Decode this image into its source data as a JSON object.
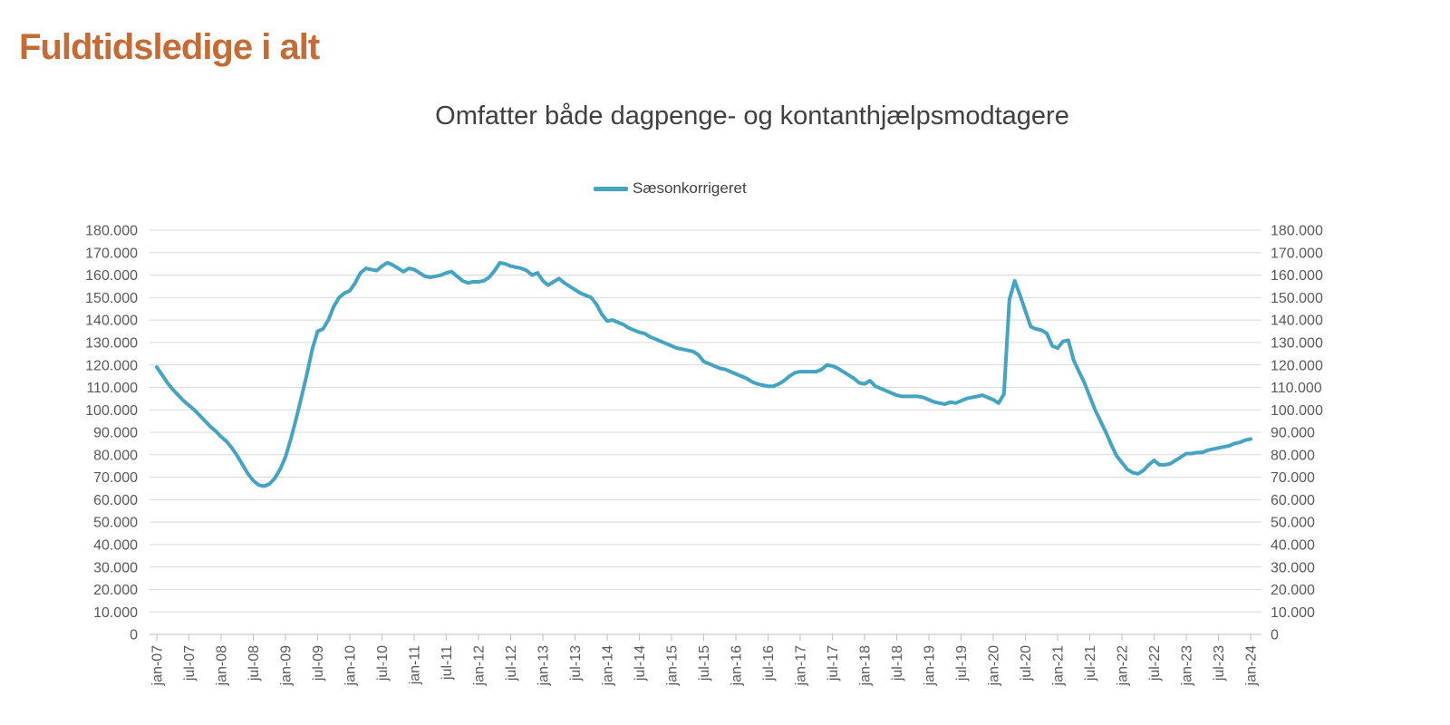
{
  "page": {
    "title": "Fuldtidsledige i alt",
    "title_color": "#C56B35",
    "background": "#FFFFFF"
  },
  "chart_data": {
    "type": "line",
    "title": "Omfatter både dagpenge- og kontanthjælpsmodtagere",
    "legend": {
      "position": "top-center",
      "entries": [
        {
          "label": "Sæsonkorrigeret",
          "color": "#45A4C4"
        }
      ]
    },
    "x": {
      "frequency": "monthly",
      "start": "jan-07",
      "end": "jan-24",
      "tick_interval_months": 6,
      "tick_labels": [
        "jan-07",
        "jul-07",
        "jan-08",
        "jul-08",
        "jan-09",
        "jul-09",
        "jan-10",
        "jul-10",
        "jan-11",
        "jul-11",
        "jan-12",
        "jul-12",
        "jan-13",
        "jul-13",
        "jan-14",
        "jul-14",
        "jan-15",
        "jul-15",
        "jan-16",
        "jul-16",
        "jan-17",
        "jul-17",
        "jan-18",
        "jul-18",
        "jan-19",
        "jul-19",
        "jan-20",
        "jul-20",
        "jan-21",
        "jul-21",
        "jan-22",
        "jul-22",
        "jan-23",
        "jul-23",
        "jan-24"
      ]
    },
    "y_axis": {
      "min": 0,
      "max": 180000,
      "step": 10000,
      "sides": "both",
      "tick_labels_top_to_bottom": [
        "180.000",
        "170.000",
        "160.000",
        "150.000",
        "140.000",
        "130.000",
        "120.000",
        "110.000",
        "100.000",
        "90.000",
        "80.000",
        "70.000",
        "60.000",
        "50.000",
        "40.000",
        "30.000",
        "20.000",
        "10.000",
        "0"
      ]
    },
    "grid": {
      "horizontal": true,
      "vertical": false,
      "color": "#D9D9D9"
    },
    "axis_color": "#BFBFBF",
    "label_color": "#595959",
    "series": [
      {
        "name": "Sæsonkorrigeret",
        "color": "#45A4C4",
        "stroke_width": 4,
        "values": [
          119000,
          115500,
          112000,
          109000,
          106500,
          104000,
          102000,
          100000,
          97500,
          95000,
          92500,
          90500,
          88000,
          86000,
          83000,
          79500,
          75500,
          71500,
          68500,
          66500,
          66000,
          67000,
          69500,
          73500,
          79000,
          87000,
          96000,
          106000,
          116000,
          127000,
          135000,
          136000,
          140000,
          146000,
          150000,
          152000,
          153000,
          156500,
          161000,
          163000,
          162500,
          162000,
          164000,
          165500,
          164500,
          163000,
          161500,
          163000,
          162500,
          161000,
          159500,
          159000,
          159500,
          160000,
          161000,
          161500,
          159500,
          157500,
          156500,
          157000,
          157000,
          157500,
          159000,
          162000,
          165500,
          165000,
          164000,
          163500,
          163000,
          162000,
          160000,
          161000,
          157500,
          155500,
          157000,
          158500,
          156500,
          155000,
          153500,
          152000,
          151000,
          150000,
          147000,
          142500,
          139500,
          140000,
          139000,
          138000,
          136500,
          135500,
          134500,
          134000,
          132500,
          131500,
          130500,
          129500,
          128500,
          127500,
          127000,
          126500,
          126000,
          124500,
          121500,
          120500,
          119500,
          118500,
          118000,
          117000,
          116000,
          115000,
          114000,
          112500,
          111500,
          111000,
          110500,
          110500,
          111500,
          113000,
          115000,
          116500,
          117000,
          117000,
          117000,
          117000,
          118000,
          120000,
          119500,
          118500,
          117000,
          115500,
          114000,
          112000,
          111500,
          113000,
          110500,
          109500,
          108500,
          107500,
          106500,
          106000,
          106000,
          106000,
          106000,
          105500,
          104500,
          103500,
          103000,
          102500,
          103500,
          103000,
          104000,
          105000,
          105500,
          106000,
          106500,
          105500,
          104500,
          103000,
          107000,
          149000,
          157500,
          151000,
          144000,
          137000,
          136000,
          135500,
          134000,
          128500,
          127500,
          130500,
          131000,
          122000,
          117000,
          112000,
          106000,
          100000,
          95000,
          90000,
          84500,
          79500,
          76500,
          73500,
          72000,
          71500,
          73000,
          75500,
          77500,
          75500,
          75500,
          76000,
          77500,
          79000,
          80500,
          80500,
          81000,
          81000,
          82000,
          82500,
          83000,
          83500,
          84000,
          85000,
          85500,
          86500,
          87000
        ]
      }
    ]
  }
}
